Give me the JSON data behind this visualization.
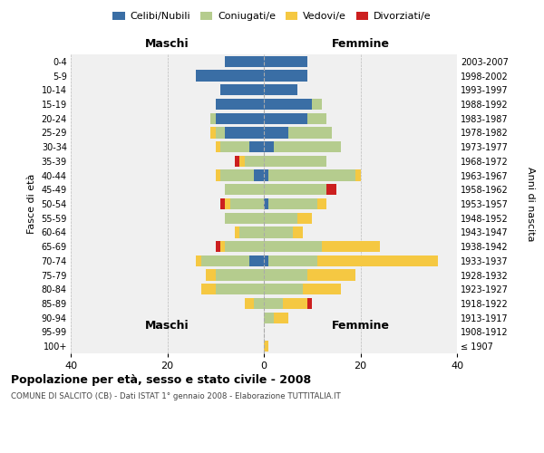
{
  "age_groups": [
    "100+",
    "95-99",
    "90-94",
    "85-89",
    "80-84",
    "75-79",
    "70-74",
    "65-69",
    "60-64",
    "55-59",
    "50-54",
    "45-49",
    "40-44",
    "35-39",
    "30-34",
    "25-29",
    "20-24",
    "15-19",
    "10-14",
    "5-9",
    "0-4"
  ],
  "birth_years": [
    "≤ 1907",
    "1908-1912",
    "1913-1917",
    "1918-1922",
    "1923-1927",
    "1928-1932",
    "1933-1937",
    "1938-1942",
    "1943-1947",
    "1948-1952",
    "1953-1957",
    "1958-1962",
    "1963-1967",
    "1968-1972",
    "1973-1977",
    "1978-1982",
    "1983-1987",
    "1988-1992",
    "1993-1997",
    "1998-2002",
    "2003-2007"
  ],
  "male_celibi": [
    0,
    0,
    0,
    0,
    0,
    0,
    3,
    0,
    0,
    0,
    0,
    0,
    2,
    0,
    3,
    8,
    10,
    10,
    9,
    14,
    8
  ],
  "male_coniugati": [
    0,
    0,
    0,
    2,
    10,
    10,
    10,
    8,
    5,
    8,
    7,
    8,
    7,
    4,
    6,
    2,
    1,
    0,
    0,
    0,
    0
  ],
  "male_vedovi": [
    0,
    0,
    0,
    2,
    3,
    2,
    1,
    1,
    1,
    0,
    1,
    0,
    1,
    1,
    1,
    1,
    0,
    0,
    0,
    0,
    0
  ],
  "male_divorziati": [
    0,
    0,
    0,
    0,
    0,
    0,
    0,
    1,
    0,
    0,
    1,
    0,
    0,
    1,
    0,
    0,
    0,
    0,
    0,
    0,
    0
  ],
  "female_celibi": [
    0,
    0,
    0,
    0,
    0,
    0,
    1,
    0,
    0,
    0,
    1,
    0,
    1,
    0,
    2,
    5,
    9,
    10,
    7,
    9,
    9
  ],
  "female_coniugati": [
    0,
    0,
    2,
    4,
    8,
    9,
    10,
    12,
    6,
    7,
    10,
    13,
    18,
    13,
    14,
    9,
    4,
    2,
    0,
    0,
    0
  ],
  "female_vedovi": [
    1,
    0,
    3,
    5,
    8,
    10,
    25,
    12,
    2,
    3,
    2,
    0,
    1,
    0,
    0,
    0,
    0,
    0,
    0,
    0,
    0
  ],
  "female_divorziati": [
    0,
    0,
    0,
    1,
    0,
    0,
    0,
    0,
    0,
    0,
    0,
    2,
    0,
    0,
    0,
    0,
    0,
    0,
    0,
    0,
    0
  ],
  "colors": {
    "celibi": "#3a6ea5",
    "coniugati": "#b5cc8e",
    "vedovi": "#f5c842",
    "divorziati": "#cc1f1f"
  },
  "title": "Popolazione per età, sesso e stato civile - 2008",
  "subtitle": "COMUNE DI SALCITO (CB) - Dati ISTAT 1° gennaio 2008 - Elaborazione TUTTITALIA.IT",
  "ylabel": "Fasce di età",
  "ylabel_right": "Anni di nascita",
  "xlabel_male": "Maschi",
  "xlabel_female": "Femmine",
  "xlim": 40,
  "background_color": "#ffffff",
  "plot_bg_color": "#f0f0f0"
}
